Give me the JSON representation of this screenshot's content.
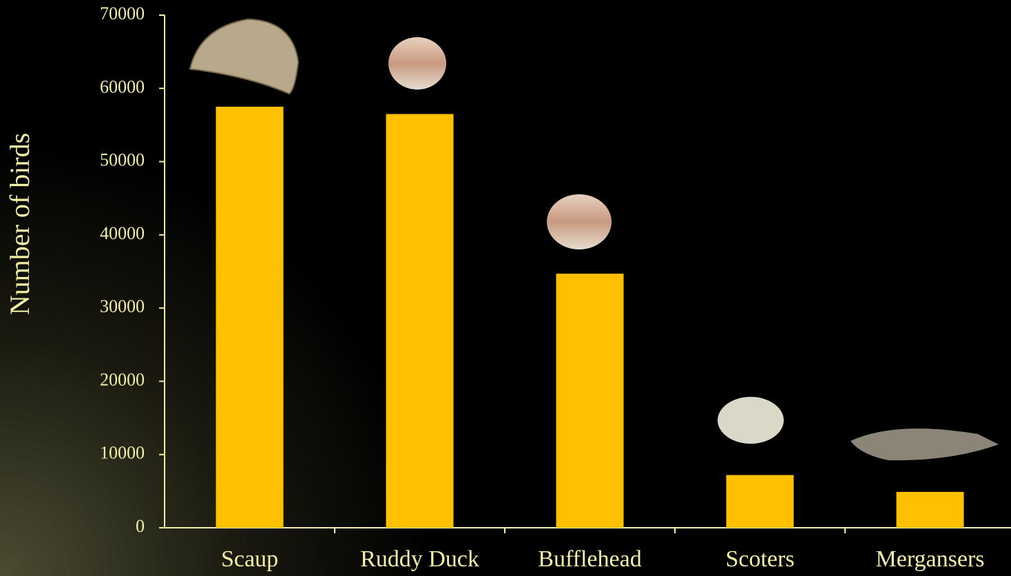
{
  "chart_data": {
    "type": "bar",
    "y_label": "Number of birds",
    "categories": [
      "Scaup",
      "Ruddy Duck",
      "Bufflehead",
      "Scoters",
      "Mergansers"
    ],
    "values": [
      57500,
      56500,
      34700,
      7200,
      4900
    ],
    "color": "#ffc000",
    "ylim": [
      0,
      70000
    ],
    "yticks": [
      0,
      10000,
      20000,
      30000,
      40000,
      50000,
      60000,
      70000
    ],
    "grid": false
  }
}
